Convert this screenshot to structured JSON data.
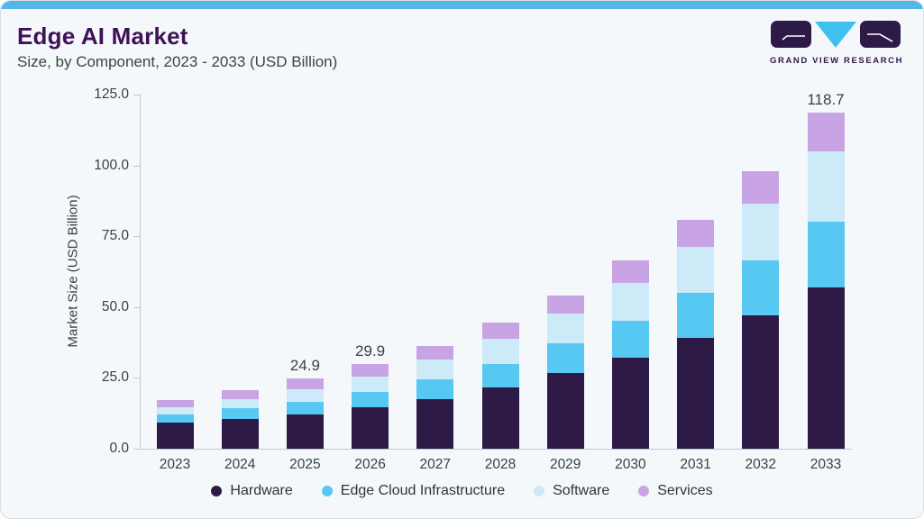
{
  "page": {
    "title": "Edge AI Market",
    "subtitle": "Size, by Component, 2023 - 2033 (USD Billion)"
  },
  "logo": {
    "text": "GRAND VIEW RESEARCH"
  },
  "colors": {
    "accent_bar": "#54b7e8",
    "card_bg": "#f4f8fb",
    "card_border": "#d8dee6",
    "title_text": "#3e1158",
    "subtitle_text": "#3d4249",
    "axis_text": "#3a3f46",
    "legend_text": "#2f343b",
    "axis_line": "#c3c9d1",
    "logo_purple": "#2e1a47",
    "logo_cyan": "#3fc0ee",
    "logo_stroke": "#ffffff"
  },
  "chart_data": {
    "type": "bar",
    "stacked": true,
    "title": "Edge AI Market",
    "subtitle": "Size, by Component, 2023 - 2033 (USD Billion)",
    "xlabel": "",
    "ylabel": "Market Size (USD Billion)",
    "ylim": [
      0,
      125
    ],
    "ytick_step": 25,
    "yticks": [
      "0.0",
      "25.0",
      "50.0",
      "75.0",
      "100.0",
      "125.0"
    ],
    "grid": false,
    "legend_position": "bottom",
    "categories": [
      "2023",
      "2024",
      "2025",
      "2026",
      "2027",
      "2028",
      "2029",
      "2030",
      "2031",
      "2032",
      "2033"
    ],
    "series": [
      {
        "name": "Hardware",
        "color": "#2e1a47",
        "values": [
          9.2,
          10.6,
          12.2,
          14.5,
          17.5,
          21.5,
          26.6,
          32.2,
          39.1,
          47.1,
          56.8
        ]
      },
      {
        "name": "Edge Cloud Infrastructure",
        "color": "#57c8f1",
        "values": [
          3.0,
          3.8,
          4.4,
          5.4,
          6.9,
          8.5,
          10.6,
          13.1,
          15.8,
          19.3,
          23.2
        ]
      },
      {
        "name": "Software",
        "color": "#cdeaf8",
        "values": [
          2.5,
          3.2,
          4.4,
          5.7,
          7.0,
          8.7,
          10.6,
          13.2,
          16.3,
          20.0,
          25.0
        ]
      },
      {
        "name": "Services",
        "color": "#c9a4e4",
        "values": [
          2.6,
          3.1,
          3.9,
          4.3,
          4.8,
          5.7,
          6.4,
          8.0,
          9.7,
          11.6,
          13.7
        ]
      }
    ],
    "totals": [
      17.3,
      20.7,
      24.9,
      29.9,
      36.2,
      44.4,
      54.2,
      66.5,
      80.9,
      98.0,
      118.7
    ],
    "bar_value_labels": {
      "2025": "24.9",
      "2026": "29.9",
      "2033": "118.7"
    }
  }
}
